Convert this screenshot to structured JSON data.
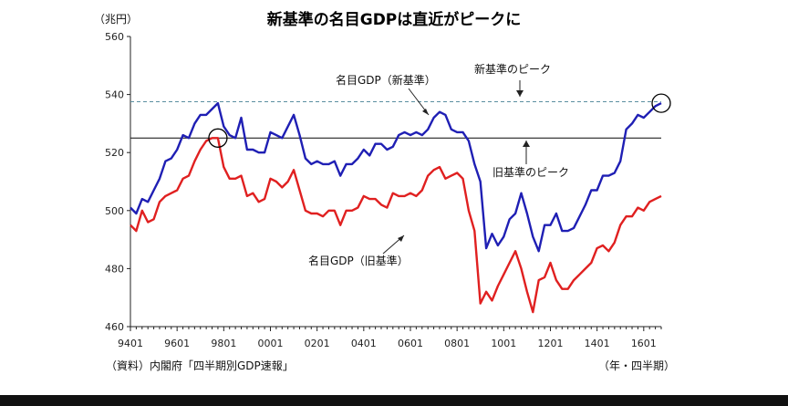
{
  "chart_data": {
    "type": "line",
    "title": "新基準の名目GDPは直近がピークに",
    "ylabel": "（兆円）",
    "xlabel": "（年・四半期）",
    "source": "（資料）内閣府「四半期別GDP速報」",
    "ylim": [
      460,
      560
    ],
    "yticks": [
      460,
      480,
      500,
      520,
      540,
      560
    ],
    "x_start": "9401",
    "x_tick_labels": [
      "9401",
      "9601",
      "9801",
      "0001",
      "0201",
      "0401",
      "0601",
      "0801",
      "1001",
      "1201",
      "1401",
      "1601"
    ],
    "grid": false,
    "series": [
      {
        "name": "名目GDP（新基準）",
        "color": "#1f1fb4",
        "values": [
          501,
          499,
          504,
          503,
          507,
          511,
          517,
          518,
          521,
          526,
          525,
          530,
          533,
          533,
          535,
          537,
          529,
          526,
          525,
          532,
          521,
          521,
          520,
          520,
          527,
          526,
          525,
          529,
          533,
          526,
          518,
          516,
          517,
          516,
          516,
          517,
          512,
          516,
          516,
          518,
          521,
          519,
          523,
          523,
          521,
          522,
          526,
          527,
          526,
          527,
          526,
          528,
          532,
          534,
          533,
          528,
          527,
          527,
          524,
          516,
          510,
          487,
          492,
          488,
          491,
          497,
          499,
          506,
          499,
          491,
          486,
          495,
          495,
          499,
          493,
          493,
          494,
          498,
          502,
          507,
          507,
          512,
          512,
          513,
          517,
          528,
          530,
          533,
          532,
          534,
          536,
          537
        ]
      },
      {
        "name": "名目GDP（旧基準）",
        "color": "#e02020",
        "values": [
          495,
          493,
          500,
          496,
          497,
          503,
          505,
          506,
          507,
          511,
          512,
          517,
          521,
          524,
          525,
          525,
          515,
          511,
          511,
          512,
          505,
          506,
          503,
          504,
          511,
          510,
          508,
          510,
          514,
          507,
          500,
          499,
          499,
          498,
          500,
          500,
          495,
          500,
          500,
          501,
          505,
          504,
          504,
          502,
          501,
          506,
          505,
          505,
          506,
          505,
          507,
          512,
          514,
          515,
          511,
          512,
          513,
          511,
          500,
          493,
          468,
          472,
          469,
          474,
          478,
          482,
          486,
          480,
          472,
          465,
          476,
          477,
          482,
          476,
          473,
          473,
          476,
          478,
          480,
          482,
          487,
          488,
          486,
          489,
          495,
          498,
          498,
          501,
          500,
          503,
          504,
          505
        ]
      }
    ],
    "reference_lines": [
      {
        "label": "新基準のピーク",
        "value": 537.5,
        "color": "#5a8fa0"
      },
      {
        "label": "旧基準のピーク",
        "value": 525,
        "color": "#222222"
      }
    ],
    "series_labels": {
      "new": "名目GDP（新基準）",
      "old": "名目GDP（旧基準）"
    },
    "circled_points": [
      {
        "series": 0,
        "index": 91
      },
      {
        "series": 1,
        "index": 15
      }
    ]
  }
}
